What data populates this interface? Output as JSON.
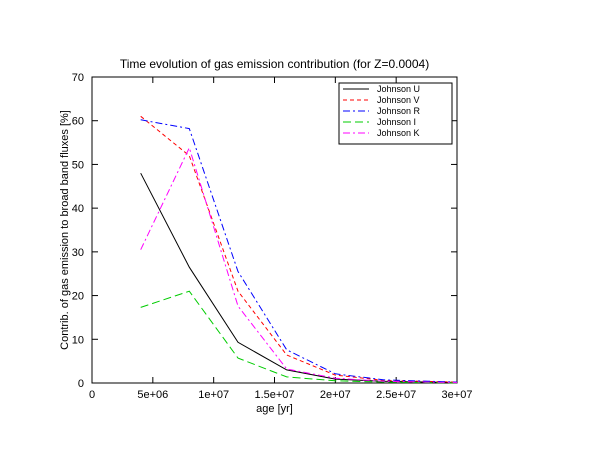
{
  "chart_data": {
    "type": "line",
    "title": "Time evolution of gas emission contribution  (for Z=0.0004)",
    "xlabel": "age [yr]",
    "ylabel": "Contrib. of gas emission to broad band fluxes [%]",
    "xlim": [
      0,
      30000000
    ],
    "ylim": [
      0,
      70
    ],
    "xticks": [
      0,
      5000000,
      10000000,
      15000000,
      20000000,
      25000000,
      30000000
    ],
    "xtick_labels": [
      "0",
      "5e+06",
      "1e+07",
      "1.5e+07",
      "2e+07",
      "2.5e+07",
      "3e+07"
    ],
    "yticks": [
      0,
      10,
      20,
      30,
      40,
      50,
      60,
      70
    ],
    "ytick_labels": [
      "0",
      "10",
      "20",
      "30",
      "40",
      "50",
      "60",
      "70"
    ],
    "grid": false,
    "legend_position": "top-right",
    "x": [
      4000000,
      8000000,
      12000000,
      16000000,
      20000000,
      24000000,
      30000000
    ],
    "series": [
      {
        "name": "Johnson U",
        "color": "#000000",
        "dash": "solid",
        "values": [
          48,
          26.5,
          9.3,
          3,
          0.9,
          0.4,
          0.1
        ]
      },
      {
        "name": "Johnson V",
        "color": "#ff0000",
        "dash": "dashed",
        "values": [
          61,
          52,
          21,
          6.4,
          1.8,
          0.6,
          0.2
        ]
      },
      {
        "name": "Johnson R",
        "color": "#0000ff",
        "dash": "dash-dot",
        "values": [
          60.2,
          58.2,
          25.5,
          7.6,
          2.1,
          0.7,
          0.2
        ]
      },
      {
        "name": "Johnson I",
        "color": "#00cc00",
        "dash": "long-dash",
        "values": [
          17.3,
          21,
          5.7,
          1.4,
          0.5,
          0.2,
          0.05
        ]
      },
      {
        "name": "Johnson K",
        "color": "#ff00ff",
        "dash": "dash-dot",
        "values": [
          30.5,
          53.8,
          17.6,
          3.2,
          1.1,
          0.4,
          0.1
        ]
      }
    ]
  }
}
